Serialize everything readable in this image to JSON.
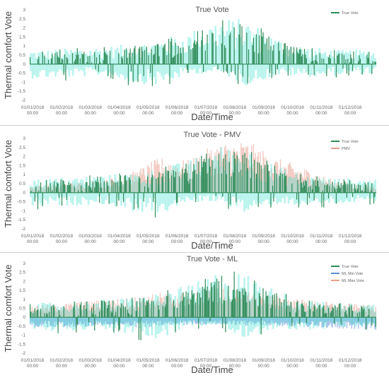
{
  "chart_data": [
    {
      "type": "bar",
      "title": "True Vote",
      "xlabel": "Date/Time",
      "ylabel": "Thermal comfort Vote",
      "ylim": [
        -2,
        3
      ],
      "yticks": [
        "3",
        "2.5",
        "2",
        "1.5",
        "1",
        "0.5",
        "0",
        "-0.5",
        "-1",
        "-1.5",
        "-2"
      ],
      "xtick_dates": [
        "01/01/2018",
        "01/02/2018",
        "01/03/2018",
        "01/04/2018",
        "01/05/2018",
        "01/06/2018",
        "01/07/2018",
        "01/08/2018",
        "01/09/2018",
        "01/10/2018",
        "01/11/2018",
        "01/12/2018"
      ],
      "xtick_times": [
        "00:00",
        "00:00",
        "00:00",
        "00:00",
        "00:00",
        "00:00",
        "00:00",
        "00:00",
        "00:00",
        "00:00",
        "00:00",
        "00:00"
      ],
      "series": [
        {
          "name": "True Vote",
          "color": "#2e8b57",
          "style": "bar",
          "monthly_mean": [
            0.15,
            0.2,
            0.3,
            0.35,
            0.5,
            0.8,
            1.3,
            1.1,
            0.6,
            0.35,
            0.2,
            0.15
          ],
          "monthly_max": [
            0.8,
            0.9,
            1.0,
            1.1,
            1.4,
            1.8,
            2.6,
            2.5,
            1.5,
            1.0,
            0.8,
            0.8
          ],
          "monthly_min": [
            -1.0,
            -0.9,
            -0.8,
            -1.3,
            -1.5,
            -0.7,
            -0.6,
            -1.5,
            -0.8,
            -0.9,
            -0.8,
            -0.7
          ]
        }
      ],
      "legend_position": "top-right",
      "grid": false
    },
    {
      "type": "bar",
      "title": "True Vote - PMV",
      "xlabel": "Date/Time",
      "ylabel": "Thermal comfort Vote",
      "ylim": [
        -2,
        3
      ],
      "yticks": [
        "3",
        "2.5",
        "2",
        "1.5",
        "1",
        "0.5",
        "0",
        "-0.5",
        "-1",
        "-1.5",
        "-2"
      ],
      "xtick_dates": [
        "01/01/2018",
        "01/02/2018",
        "01/03/2018",
        "01/04/2018",
        "01/05/2018",
        "01/06/2018",
        "01/07/2018",
        "01/08/2018",
        "01/09/2018",
        "01/10/2018",
        "01/11/2018",
        "01/12/2018"
      ],
      "xtick_times": [
        "00:00",
        "00:00",
        "00:00",
        "00:00",
        "00:00",
        "00:00",
        "00:00",
        "00:00",
        "00:00",
        "00:00",
        "00:00",
        "00:00"
      ],
      "series": [
        {
          "name": "True Vote",
          "color": "#2e8b57",
          "style": "bar",
          "monthly_mean": [
            0.15,
            0.2,
            0.3,
            0.35,
            0.5,
            0.8,
            1.3,
            1.1,
            0.6,
            0.35,
            0.2,
            0.15
          ],
          "monthly_max": [
            0.8,
            0.9,
            1.0,
            1.1,
            1.4,
            1.8,
            2.6,
            2.5,
            1.5,
            1.0,
            0.8,
            0.8
          ],
          "monthly_min": [
            -1.0,
            -0.9,
            -0.8,
            -1.3,
            -1.5,
            -0.7,
            -0.6,
            -1.5,
            -0.8,
            -0.9,
            -0.8,
            -0.7
          ]
        },
        {
          "name": "PMV",
          "color": "#e8a090",
          "style": "area",
          "monthly_mean": [
            0.3,
            0.4,
            0.5,
            0.8,
            1.4,
            1.3,
            2.0,
            2.1,
            1.4,
            1.0,
            0.5,
            0.3
          ]
        }
      ],
      "legend_position": "top-right",
      "grid": false
    },
    {
      "type": "bar",
      "title": "True Vote - ML",
      "xlabel": "Date/Time",
      "ylabel": "Thermal comfort Vote",
      "ylim": [
        -2,
        3
      ],
      "yticks": [
        "3",
        "2.5",
        "2",
        "1.5",
        "1",
        "0.5",
        "0",
        "-0.5",
        "-1",
        "-1.5",
        "-2"
      ],
      "xtick_dates": [
        "01/01/2018",
        "01/02/2018",
        "01/03/2018",
        "01/04/2018",
        "01/05/2018",
        "01/06/2018",
        "01/07/2018",
        "01/08/2018",
        "01/09/2018",
        "01/10/2018",
        "01/11/2018",
        "01/12/2018"
      ],
      "xtick_times": [
        "00:00",
        "00:00",
        "00:00",
        "00:00",
        "00:00",
        "00:00",
        "00:00",
        "00:00",
        "00:00",
        "00:00",
        "00:00",
        "00:00"
      ],
      "series": [
        {
          "name": "True Vote",
          "color": "#2e8b57",
          "style": "bar",
          "monthly_mean": [
            0.15,
            0.2,
            0.3,
            0.35,
            0.5,
            0.8,
            1.3,
            1.1,
            0.6,
            0.35,
            0.2,
            0.15
          ],
          "monthly_max": [
            0.8,
            0.9,
            1.0,
            1.1,
            1.4,
            1.8,
            2.6,
            2.5,
            1.5,
            1.0,
            0.8,
            0.8
          ],
          "monthly_min": [
            -1.0,
            -0.9,
            -0.8,
            -1.3,
            -1.5,
            -0.7,
            -0.6,
            -1.5,
            -0.8,
            -0.9,
            -0.8,
            -0.7
          ]
        },
        {
          "name": "ML Min Vote",
          "color": "#5b8fd6",
          "style": "area",
          "monthly_mean": [
            -0.4,
            -0.4,
            -0.35,
            -0.4,
            -0.4,
            -0.3,
            -0.3,
            -0.35,
            -0.35,
            -0.4,
            -0.45,
            -0.5
          ]
        },
        {
          "name": "ML Max Vote",
          "color": "#e8a090",
          "style": "area",
          "monthly_mean": [
            0.5,
            0.6,
            0.7,
            0.8,
            1.0,
            1.0,
            1.2,
            1.1,
            0.9,
            0.7,
            0.6,
            0.5
          ]
        }
      ],
      "legend_position": "top-right",
      "grid": false
    }
  ]
}
